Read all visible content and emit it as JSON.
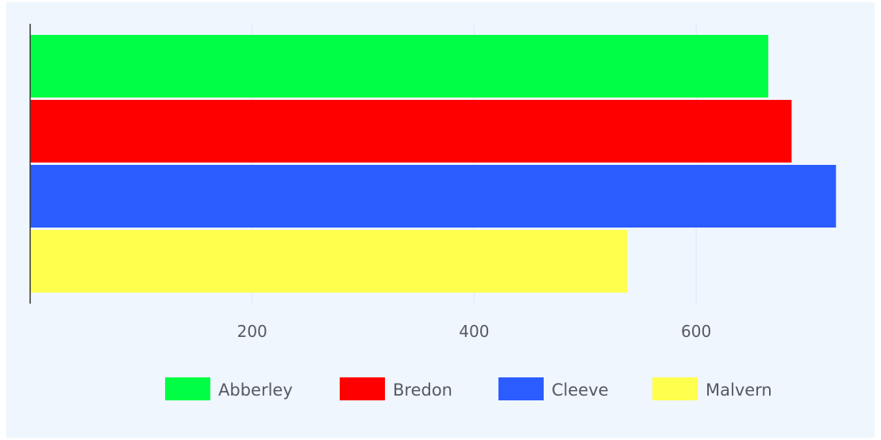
{
  "chart_data": {
    "type": "bar",
    "orientation": "horizontal",
    "grouped": true,
    "categories": [
      ""
    ],
    "series": [
      {
        "name": "Abberley",
        "values": [
          665
        ],
        "color": "#00ff44"
      },
      {
        "name": "Bredon",
        "values": [
          686
        ],
        "color": "#ff0000"
      },
      {
        "name": "Cleeve",
        "values": [
          726
        ],
        "color": "#2b5cff"
      },
      {
        "name": "Malvern",
        "values": [
          538
        ],
        "color": "#ffff4d"
      }
    ],
    "xlim": [
      0,
      730
    ],
    "x_ticks": [
      200,
      400,
      600
    ],
    "x_tick_labels": [
      "200",
      "400",
      "600"
    ],
    "grid": "vertical",
    "legend_position": "bottom-center",
    "title": "",
    "xlabel": "",
    "ylabel": ""
  },
  "colors": {
    "background": "#eff6fd",
    "grid": "#dce8f5",
    "axis": "#333333",
    "text": "#555a60"
  }
}
